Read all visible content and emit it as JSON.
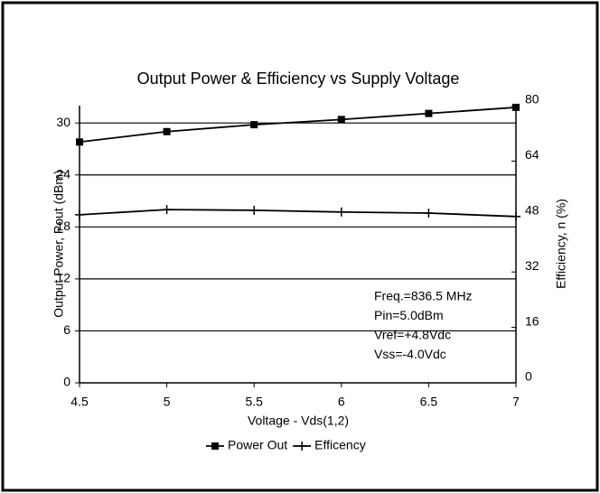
{
  "chart_data": {
    "type": "line",
    "title": "Output Power & Efficiency vs Supply Voltage",
    "x_label": "Voltage - Vds(1,2)",
    "y_label": "Output Power, Pout (dBm)",
    "y2_label": "Efficiency, n (%)",
    "x": [
      4.5,
      5,
      5.5,
      6,
      6.5,
      7
    ],
    "series": [
      {
        "name": "Power Out",
        "color": "#000000",
        "marker": "square",
        "values": [
          27.8,
          29,
          29.8,
          30.4,
          31.1,
          31.8
        ]
      },
      {
        "name": "Efficency",
        "color": "#000000",
        "marker": "plus",
        "axis": "y2",
        "values": [
          48.5,
          50,
          49.8,
          49.3,
          49,
          48
        ]
      }
    ],
    "xlim": [
      4.5,
      7
    ],
    "xticks": [
      4.5,
      5,
      5.5,
      6,
      6.5,
      7
    ],
    "ylim": [
      0,
      32
    ],
    "yticks": [
      0,
      6,
      12,
      18,
      24,
      30
    ],
    "y2lim": [
      0,
      80
    ],
    "y2ticks": [
      0,
      16,
      32,
      48,
      64,
      80
    ],
    "grid": true,
    "legend": "bottom",
    "annotations": [
      "Freq.=836.5 MHz",
      "Pin=5.0dBm",
      "Vref=+4.8Vdc",
      "Vss=-4.0Vdc"
    ]
  }
}
